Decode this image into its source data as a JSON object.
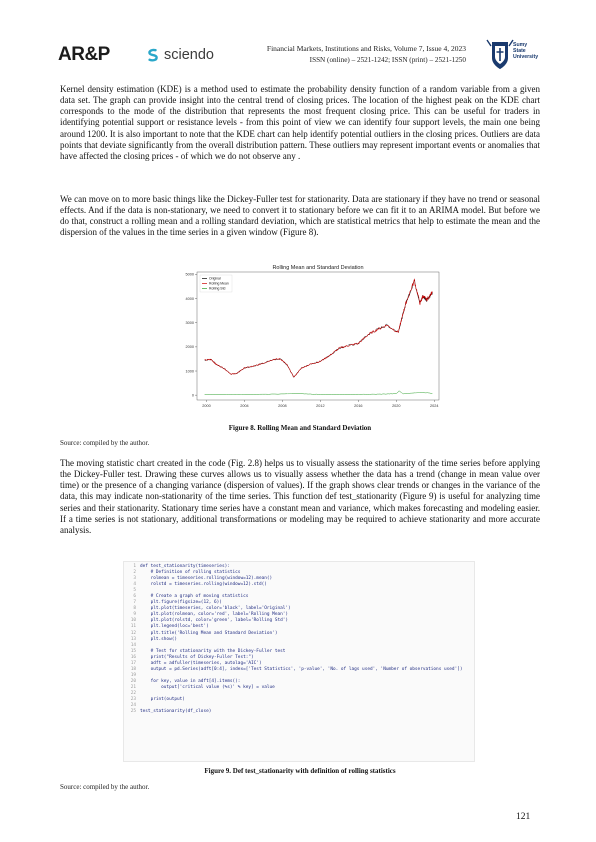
{
  "header": {
    "publisher_logo": "AR&P",
    "platform_logo": "sciendo",
    "journal_line1": "Financial Markets, Institutions and Risks, Volume 7, Issue 4, 2023",
    "journal_line2": "ISSN (online) – 2521-1242; ISSN (print) – 2521-1250",
    "university_name": "Sumy\nState\nUniversity"
  },
  "paragraphs": {
    "p1": "Kernel density estimation (KDE) is a method used to estimate the probability density function of a random variable from a given data set. The graph can provide insight into the central trend of closing prices. The location of the highest peak on the KDE chart corresponds to the mode of the distribution that represents the most frequent closing price. This can be useful for traders in identifying potential support or resistance levels - from this point of view we can identify four support levels, the main one being around 1200. It is also important to note that the KDE chart can help identify potential outliers in the closing prices. Outliers are data points that deviate significantly from the overall distribution pattern. These outliers may represent important events or anomalies that have affected the closing prices - of which we do not observe any .",
    "p2": "We can move on to more basic things like the Dickey-Fuller test for stationarity. Data are stationary if they have no trend or seasonal effects. And if the data is non-stationary, we need to convert it to stationary before we can fit it to an ARIMA model. But before we do that, construct a rolling mean and a rolling standard deviation, which are statistical metrics that help to estimate the mean and the dispersion of the values in the time series in a given window (Figure 8).",
    "p3": "The moving statistic chart created in the code (Fig. 2.8) helps us to visually assess the stationarity of the time series before applying the Dickey-Fuller test. Drawing these curves allows us to visually assess whether the data has a trend (change in mean value over time) or the presence of a changing variance (dispersion of values). If the graph shows clear trends or changes in the variance of the data, this may indicate non-stationarity of the time series. This function def test_stationarity (Figure 9) is useful for analyzing time series and their stationarity. Stationary time series have a constant mean and variance, which makes forecasting and modeling easier. If a time series is not stationary, additional transformations or modeling may be required to achieve stationarity and more accurate analysis."
  },
  "figure8": {
    "caption": "Figure 8. Rolling Mean and Standard Deviation",
    "source": "Source: compiled by the author."
  },
  "figure9": {
    "caption": "Figure 9. Def test_stationarity with definition of rolling statistics",
    "source": "Source: compiled by the author."
  },
  "chart_data": {
    "type": "line",
    "title": "Rolling Mean and Standard Deviation",
    "xlim": [
      1999,
      2024.5
    ],
    "ylim": [
      -200,
      5100
    ],
    "xticks": [
      2000,
      2004,
      2008,
      2012,
      2016,
      2020,
      2024
    ],
    "yticks": [
      0,
      1000,
      2000,
      3000,
      4000,
      5000
    ],
    "legend_position": "top-left",
    "series": [
      {
        "name": "Original",
        "color": "#000000",
        "x": [
          1999.8,
          2000.5,
          2001.0,
          2001.8,
          2002.6,
          2003.2,
          2004.0,
          2005.0,
          2006.0,
          2007.0,
          2007.8,
          2008.5,
          2009.2,
          2010.0,
          2011.0,
          2012.0,
          2013.0,
          2014.0,
          2015.0,
          2016.0,
          2017.0,
          2018.0,
          2019.0,
          2020.2,
          2020.6,
          2021.0,
          2021.9,
          2022.5,
          2022.8,
          2023.2,
          2023.8
        ],
        "values": [
          1450,
          1480,
          1280,
          1120,
          870,
          900,
          1130,
          1200,
          1330,
          1480,
          1500,
          1250,
          740,
          1120,
          1290,
          1400,
          1650,
          1950,
          2060,
          2140,
          2500,
          2720,
          2900,
          2600,
          3200,
          3800,
          4750,
          3800,
          4100,
          3950,
          4250
        ]
      },
      {
        "name": "Rolling Mean",
        "color": "#cc0000",
        "x": [
          1999.8,
          2000.5,
          2001.0,
          2001.8,
          2002.6,
          2003.2,
          2004.0,
          2005.0,
          2006.0,
          2007.0,
          2007.8,
          2008.5,
          2009.2,
          2010.0,
          2011.0,
          2012.0,
          2013.0,
          2014.0,
          2015.0,
          2016.0,
          2017.0,
          2018.0,
          2019.0,
          2020.2,
          2020.6,
          2021.0,
          2021.9,
          2022.5,
          2022.8,
          2023.2,
          2023.8
        ],
        "values": [
          1450,
          1480,
          1280,
          1120,
          870,
          900,
          1130,
          1200,
          1330,
          1480,
          1500,
          1250,
          740,
          1120,
          1290,
          1400,
          1650,
          1950,
          2060,
          2140,
          2500,
          2720,
          2900,
          2600,
          3200,
          3800,
          4750,
          3800,
          4100,
          3950,
          4250
        ]
      },
      {
        "name": "Rolling Std",
        "color": "#2ca02c",
        "x": [
          1999.8,
          2002.0,
          2004.0,
          2008.5,
          2009.0,
          2012.0,
          2016.0,
          2018.0,
          2020.0,
          2020.3,
          2020.7,
          2022.0,
          2022.5,
          2023.8
        ],
        "values": [
          30,
          30,
          25,
          50,
          80,
          30,
          30,
          40,
          60,
          180,
          60,
          90,
          120,
          80
        ]
      }
    ]
  },
  "code_lines": [
    "def test_stationarity(timeseries):",
    "    # Definition of rolling statistics",
    "    rolmean = timeseries.rolling(window=12).mean()",
    "    rolstd = timeseries.rolling(window=12).std()",
    "",
    "    # Create a graph of moving statistics",
    "    plt.figure(figsize=(12, 6))",
    "    plt.plot(timeseries, color='black', label='Original')",
    "    plt.plot(rolmean, color='red', label='Rolling Mean')",
    "    plt.plot(rolstd, color='green', label='Rolling Std')",
    "    plt.legend(loc='best')",
    "    plt.title('Rolling Mean and Standard Deviation')",
    "    plt.show()",
    "",
    "    # Test for stationarity with the Dickey-Fuller test",
    "    print(\"Results of Dickey-Fuller Test:\")",
    "    adft = adfuller(timeseries, autolag='AIC')",
    "    output = pd.Series(adft[0:4], index=['Test Statistics', 'p-value', 'No. of lags used', 'Number of observations used'])",
    "",
    "    for key, value in adft[4].items():",
    "        output['critical value (%s)' % key] = value",
    "",
    "    print(output)",
    "",
    "test_stationarity(df_close)"
  ],
  "page_number": "121"
}
